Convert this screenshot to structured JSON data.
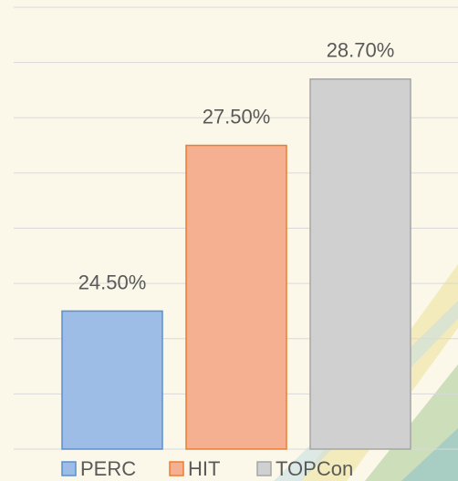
{
  "chart_data": {
    "type": "bar",
    "categories": [
      "PERC",
      "HIT",
      "TOPCon"
    ],
    "values": [
      24.5,
      27.5,
      28.7
    ],
    "value_labels": [
      "24.50%",
      "27.50%",
      "28.70%"
    ],
    "colors": [
      "#9dbde6",
      "#f5b091",
      "#d0d0d0"
    ],
    "edge_colors": [
      "#5b8fd0",
      "#ed7d31",
      "#a5a5a5"
    ],
    "ylim": [
      22,
      30
    ],
    "yticks": [
      22,
      23,
      24,
      25,
      26,
      27,
      28,
      29,
      30
    ],
    "grid": true,
    "legend": "bottom"
  }
}
